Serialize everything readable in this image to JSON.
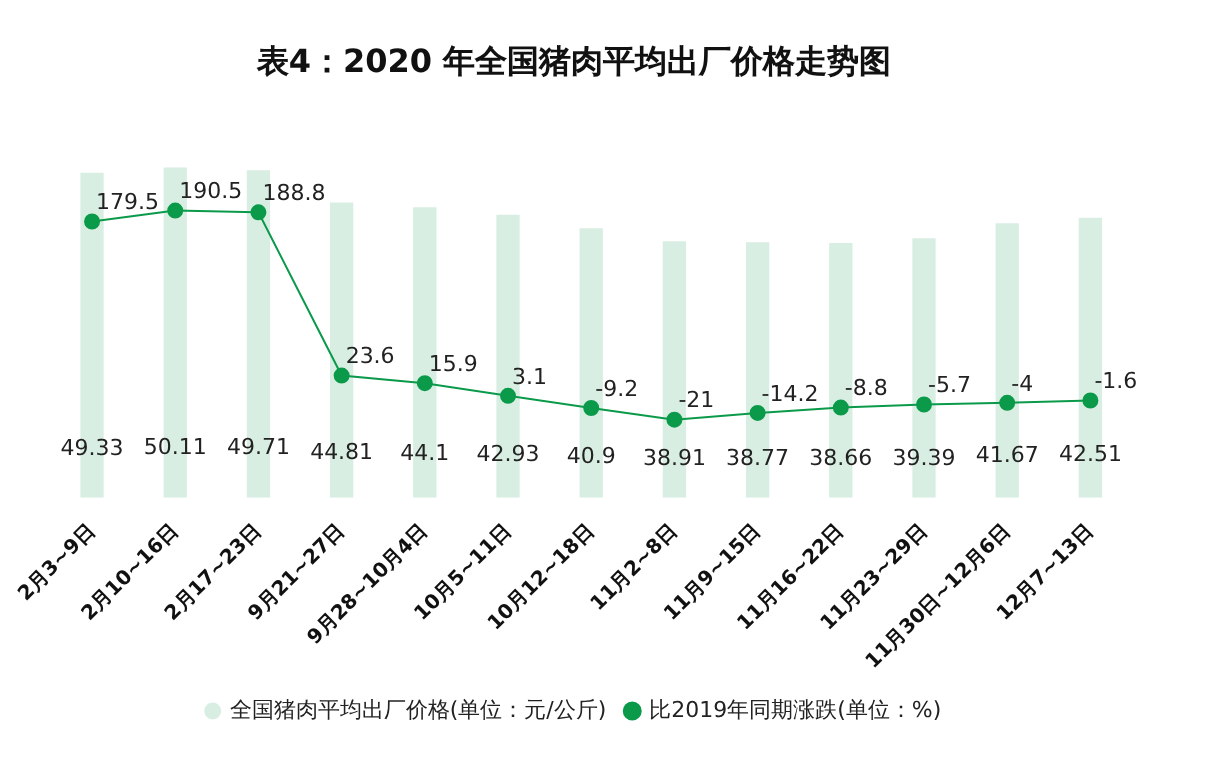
{
  "chart_data": {
    "type": "bar",
    "title": "表4：2020 年全国猪肉平均出厂价格走势图",
    "categories": [
      "2月3~9日",
      "2月10~16日",
      "2月17~23日",
      "9月21~27日",
      "9月28~10月4日",
      "10月5~11日",
      "10月12~18日",
      "11月2~8日",
      "11月9~15日",
      "11月16~22日",
      "11月23~29日",
      "11月30日~12月6日",
      "12月7~13日"
    ],
    "series": [
      {
        "name": "全国猪肉平均出厂价格(单位：元/公斤)",
        "color": "#d8eee2",
        "values": [
          49.33,
          50.11,
          49.71,
          44.81,
          44.1,
          42.93,
          40.9,
          38.91,
          38.77,
          38.66,
          39.39,
          41.67,
          42.51
        ]
      },
      {
        "name": "比2019年同期涨跌(单位：%)",
        "type": "line",
        "axis": "y2",
        "color": "#0a9a4a",
        "marker": "circle",
        "values": [
          179.5,
          190.5,
          188.8,
          23.6,
          15.9,
          3.1,
          -9.2,
          -21.0,
          -14.2,
          -8.8,
          -5.7,
          -4.0,
          -1.6
        ]
      }
    ],
    "tick_labels": "x",
    "data_labels": true,
    "legend": "bottom",
    "grid": false
  }
}
